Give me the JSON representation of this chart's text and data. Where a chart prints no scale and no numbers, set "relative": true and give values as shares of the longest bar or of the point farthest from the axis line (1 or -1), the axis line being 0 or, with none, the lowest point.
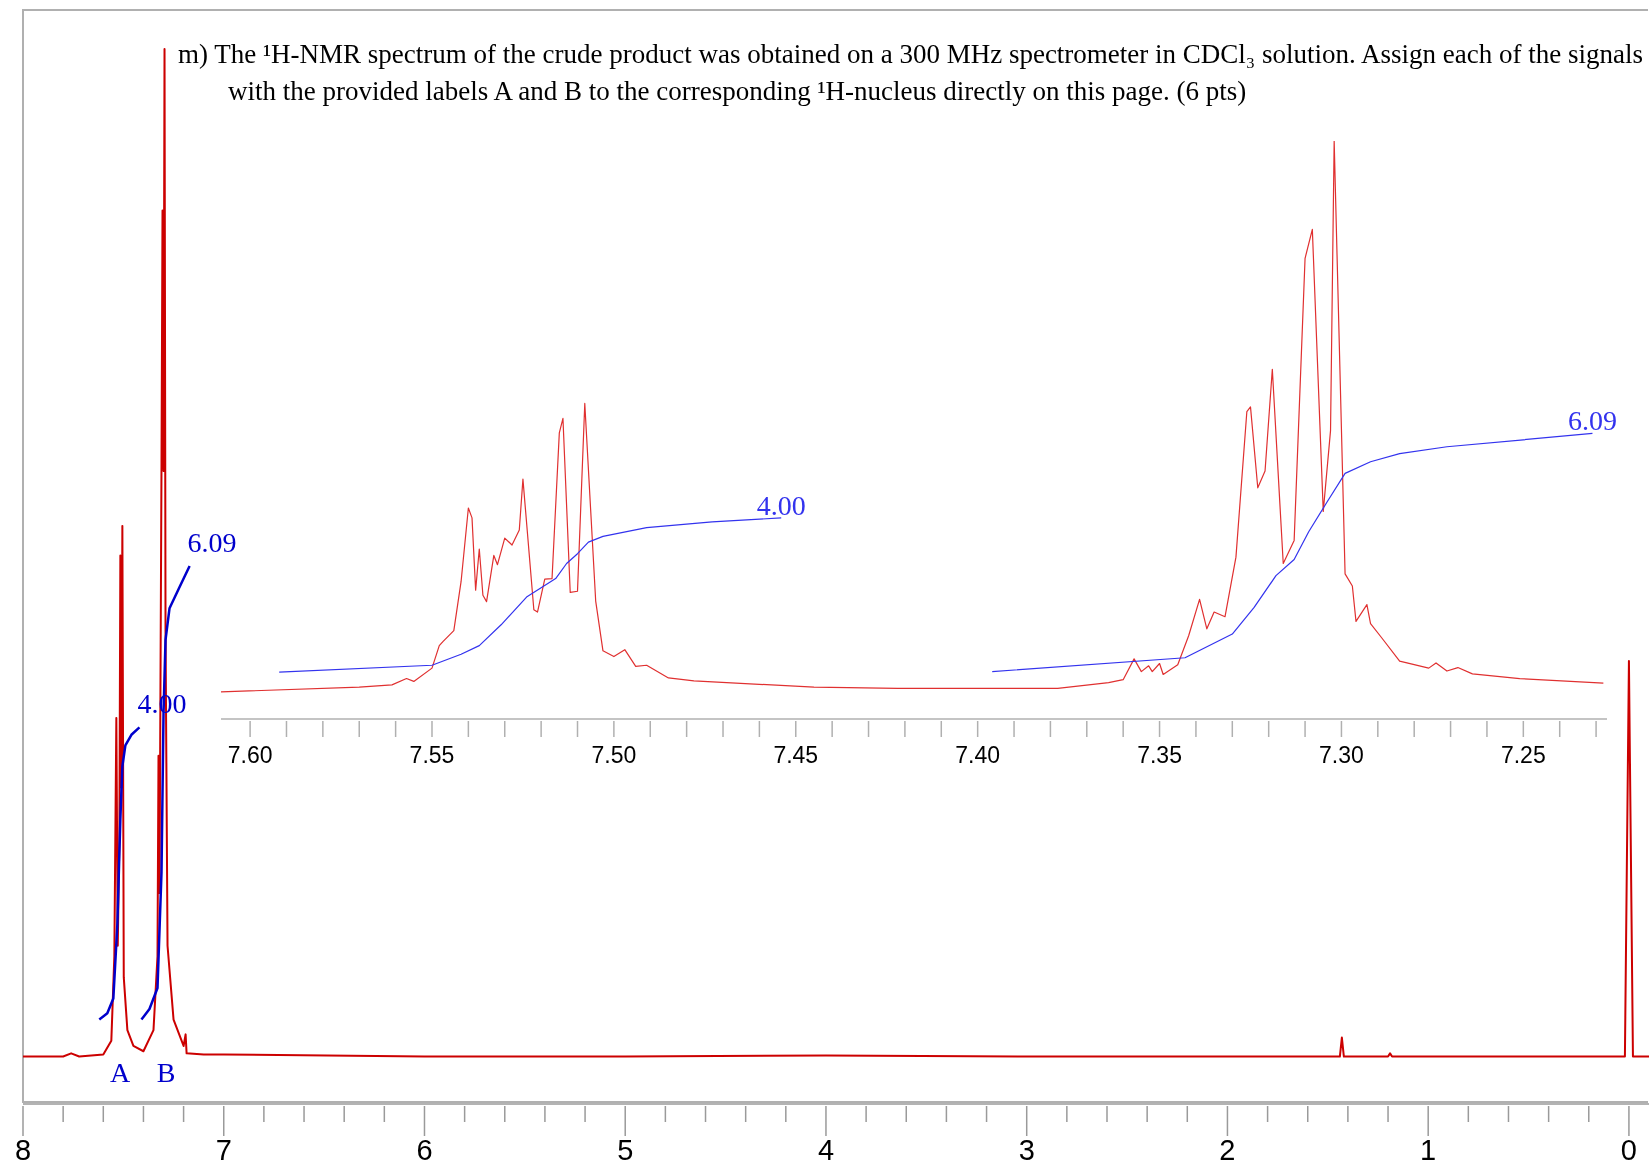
{
  "chart_data": [
    {
      "type": "line",
      "relative": true,
      "title": "m) The ¹H-NMR spectrum of the crude product was obtained on a 300 MHz spectrometer in CDCl₃ solution. Assign each of the signals with the provided labels A and B to the corresponding ¹H-nucleus directly on this page. (6 pts)",
      "xlim": [
        8,
        -0.1
      ],
      "xticks": [
        {
          "value": 8,
          "label": "8"
        },
        {
          "value": 7.8,
          "label": null
        },
        {
          "value": 7.6,
          "label": null
        },
        {
          "value": 7.4,
          "label": null
        },
        {
          "value": 7.2,
          "label": null
        },
        {
          "value": 7,
          "label": "7"
        },
        {
          "value": 6.8,
          "label": null
        },
        {
          "value": 6.6,
          "label": null
        },
        {
          "value": 6.4,
          "label": null
        },
        {
          "value": 6.2,
          "label": null
        },
        {
          "value": 6,
          "label": "6"
        },
        {
          "value": 5.8,
          "label": null
        },
        {
          "value": 5.6,
          "label": null
        },
        {
          "value": 5.4,
          "label": null
        },
        {
          "value": 5.2,
          "label": null
        },
        {
          "value": 5,
          "label": "5"
        },
        {
          "value": 4.8,
          "label": null
        },
        {
          "value": 4.6,
          "label": null
        },
        {
          "value": 4.4,
          "label": null
        },
        {
          "value": 4.2,
          "label": null
        },
        {
          "value": 4,
          "label": "4"
        },
        {
          "value": 3.8,
          "label": null
        },
        {
          "value": 3.6,
          "label": null
        },
        {
          "value": 3.4,
          "label": null
        },
        {
          "value": 3.2,
          "label": null
        },
        {
          "value": 3,
          "label": "3"
        },
        {
          "value": 2.8,
          "label": null
        },
        {
          "value": 2.6,
          "label": null
        },
        {
          "value": 2.4,
          "label": null
        },
        {
          "value": 2.2,
          "label": null
        },
        {
          "value": 2,
          "label": "2"
        },
        {
          "value": 1.8,
          "label": null
        },
        {
          "value": 1.6,
          "label": null
        },
        {
          "value": 1.4,
          "label": null
        },
        {
          "value": 1.2,
          "label": null
        },
        {
          "value": 1,
          "label": "1"
        },
        {
          "value": 0.8,
          "label": null
        },
        {
          "value": 0.6,
          "label": null
        },
        {
          "value": 0.4,
          "label": null
        },
        {
          "value": 0.2,
          "label": null
        },
        {
          "value": 0,
          "label": "0"
        }
      ],
      "series": [
        {
          "color": "#cc0000",
          "x": [
            8.0,
            7.8,
            7.76,
            7.72,
            7.6,
            7.56,
            7.545,
            7.535,
            7.528,
            7.52,
            7.515,
            7.51,
            7.505,
            7.498,
            7.48,
            7.45,
            7.4,
            7.35,
            7.33,
            7.325,
            7.32,
            7.31,
            7.305,
            7.3,
            7.295,
            7.29,
            7.28,
            7.25,
            7.2,
            7.19,
            7.185,
            7.1,
            7.0,
            6.0,
            5.0,
            4.0,
            3.0,
            2.0,
            1.44,
            1.43,
            1.42,
            1.2,
            1.19,
            1.18,
            0.02,
            0.0,
            -0.02,
            -0.1
          ],
          "values": [
            0.045,
            0.045,
            0.048,
            0.045,
            0.047,
            0.06,
            0.14,
            0.366,
            0.15,
            0.25,
            0.52,
            0.3,
            0.548,
            0.12,
            0.07,
            0.055,
            0.05,
            0.07,
            0.14,
            0.33,
            0.2,
            0.608,
            0.847,
            0.6,
            1,
            0.45,
            0.15,
            0.08,
            0.055,
            0.066,
            0.048,
            0.047,
            0.047,
            0.045,
            0.045,
            0.046,
            0.045,
            0.045,
            0.045,
            0.063,
            0.045,
            0.045,
            0.048,
            0.045,
            0.045,
            0.42,
            0.045,
            0.045
          ]
        },
        {
          "color": "#0000cc",
          "x": [
            7.62,
            7.58,
            7.55,
            7.53,
            7.515,
            7.505,
            7.49,
            7.46,
            7.42
          ],
          "values": [
            0.08,
            0.086,
            0.1,
            0.17,
            0.27,
            0.32,
            0.34,
            0.35,
            0.357
          ]
        },
        {
          "color": "#0000cc",
          "x": [
            7.41,
            7.37,
            7.33,
            7.31,
            7.3,
            7.29,
            7.27,
            7.22,
            7.17
          ],
          "values": [
            0.08,
            0.09,
            0.11,
            0.22,
            0.37,
            0.44,
            0.47,
            0.49,
            0.51
          ]
        }
      ],
      "annotations": [
        {
          "text": "4.00",
          "x": 7.42,
          "y": 0.357
        },
        {
          "text": "6.09",
          "x": 7.17,
          "y": 0.51
        },
        "A",
        "B"
      ]
    },
    {
      "type": "line",
      "relative": true,
      "xlim": [
        7.608,
        7.227
      ],
      "xticks": [
        {
          "value": 7.6,
          "label": "7.60"
        },
        {
          "value": 7.59,
          "label": null
        },
        {
          "value": 7.58,
          "label": null
        },
        {
          "value": 7.57,
          "label": null
        },
        {
          "value": 7.56,
          "label": null
        },
        {
          "value": 7.55,
          "label": "7.55"
        },
        {
          "value": 7.54,
          "label": null
        },
        {
          "value": 7.53,
          "label": null
        },
        {
          "value": 7.52,
          "label": null
        },
        {
          "value": 7.51,
          "label": null
        },
        {
          "value": 7.5,
          "label": "7.50"
        },
        {
          "value": 7.49,
          "label": null
        },
        {
          "value": 7.48,
          "label": null
        },
        {
          "value": 7.47,
          "label": null
        },
        {
          "value": 7.46,
          "label": null
        },
        {
          "value": 7.45,
          "label": "7.45"
        },
        {
          "value": 7.44,
          "label": null
        },
        {
          "value": 7.43,
          "label": null
        },
        {
          "value": 7.42,
          "label": null
        },
        {
          "value": 7.41,
          "label": null
        },
        {
          "value": 7.4,
          "label": "7.40"
        },
        {
          "value": 7.39,
          "label": null
        },
        {
          "value": 7.38,
          "label": null
        },
        {
          "value": 7.37,
          "label": null
        },
        {
          "value": 7.36,
          "label": null
        },
        {
          "value": 7.35,
          "label": "7.35"
        },
        {
          "value": 7.34,
          "label": null
        },
        {
          "value": 7.33,
          "label": null
        },
        {
          "value": 7.32,
          "label": null
        },
        {
          "value": 7.31,
          "label": null
        },
        {
          "value": 7.3,
          "label": "7.30"
        },
        {
          "value": 7.29,
          "label": null
        },
        {
          "value": 7.28,
          "label": null
        },
        {
          "value": 7.27,
          "label": null
        },
        {
          "value": 7.26,
          "label": null
        },
        {
          "value": 7.25,
          "label": "7.25"
        },
        {
          "value": 7.24,
          "label": null
        },
        {
          "value": 7.23,
          "label": null
        }
      ],
      "series": [
        {
          "color": "#e03030",
          "x": [
            7.608,
            7.57,
            7.561,
            7.557,
            7.555,
            7.55,
            7.548,
            7.547,
            7.544,
            7.542,
            7.54,
            7.539,
            7.538,
            7.537,
            7.536,
            7.535,
            7.533,
            7.532,
            7.53,
            7.528,
            7.526,
            7.525,
            7.522,
            7.521,
            7.519,
            7.517,
            7.515,
            7.514,
            7.512,
            7.51,
            7.508,
            7.505,
            7.503,
            7.5,
            7.497,
            7.494,
            7.491,
            7.485,
            7.478,
            7.445,
            7.422,
            7.378,
            7.364,
            7.36,
            7.357,
            7.355,
            7.353,
            7.352,
            7.35,
            7.349,
            7.345,
            7.342,
            7.339,
            7.337,
            7.335,
            7.332,
            7.329,
            7.326,
            7.325,
            7.323,
            7.321,
            7.319,
            7.316,
            7.313,
            7.31,
            7.308,
            7.305,
            7.303,
            7.302,
            7.299,
            7.297,
            7.296,
            7.293,
            7.292,
            7.289,
            7.284,
            7.276,
            7.274,
            7.271,
            7.268,
            7.264,
            7.251,
            7.228
          ],
          "values": [
            0.047,
            0.055,
            0.059,
            0.07,
            0.065,
            0.088,
            0.127,
            0.134,
            0.153,
            0.238,
            0.365,
            0.348,
            0.223,
            0.294,
            0.214,
            0.203,
            0.283,
            0.267,
            0.313,
            0.301,
            0.327,
            0.415,
            0.189,
            0.185,
            0.242,
            0.243,
            0.495,
            0.52,
            0.219,
            0.221,
            0.546,
            0.204,
            0.118,
            0.108,
            0.12,
            0.091,
            0.093,
            0.071,
            0.066,
            0.055,
            0.053,
            0.053,
            0.063,
            0.068,
            0.104,
            0.082,
            0.092,
            0.082,
            0.096,
            0.077,
            0.094,
            0.144,
            0.207,
            0.156,
            0.185,
            0.177,
            0.28,
            0.532,
            0.54,
            0.4,
            0.429,
            0.605,
            0.269,
            0.309,
            0.797,
            0.847,
            0.359,
            0.499,
            1,
            0.251,
            0.23,
            0.169,
            0.198,
            0.165,
            0.141,
            0.1,
            0.088,
            0.097,
            0.083,
            0.089,
            0.078,
            0.07,
            0.062
          ]
        },
        {
          "color": "#3333ee",
          "x": [
            7.592,
            7.55,
            7.542,
            7.537,
            7.531,
            7.524,
            7.516,
            7.513,
            7.51,
            7.507,
            7.503,
            7.491,
            7.473,
            7.454
          ],
          "values": [
            0.081,
            0.093,
            0.112,
            0.127,
            0.163,
            0.211,
            0.243,
            0.269,
            0.286,
            0.306,
            0.316,
            0.331,
            0.341,
            0.348
          ]
        },
        {
          "color": "#3333ee",
          "x": [
            7.396,
            7.343,
            7.33,
            7.324,
            7.318,
            7.313,
            7.309,
            7.304,
            7.299,
            7.292,
            7.284,
            7.271,
            7.231
          ],
          "values": [
            0.082,
            0.106,
            0.147,
            0.193,
            0.248,
            0.276,
            0.324,
            0.375,
            0.425,
            0.445,
            0.459,
            0.471,
            0.494
          ]
        }
      ],
      "annotations": [
        {
          "text": "4.00",
          "x": 7.454,
          "y": 0.348
        },
        {
          "text": "6.09",
          "x": 7.231,
          "y": 0.494
        }
      ]
    }
  ]
}
